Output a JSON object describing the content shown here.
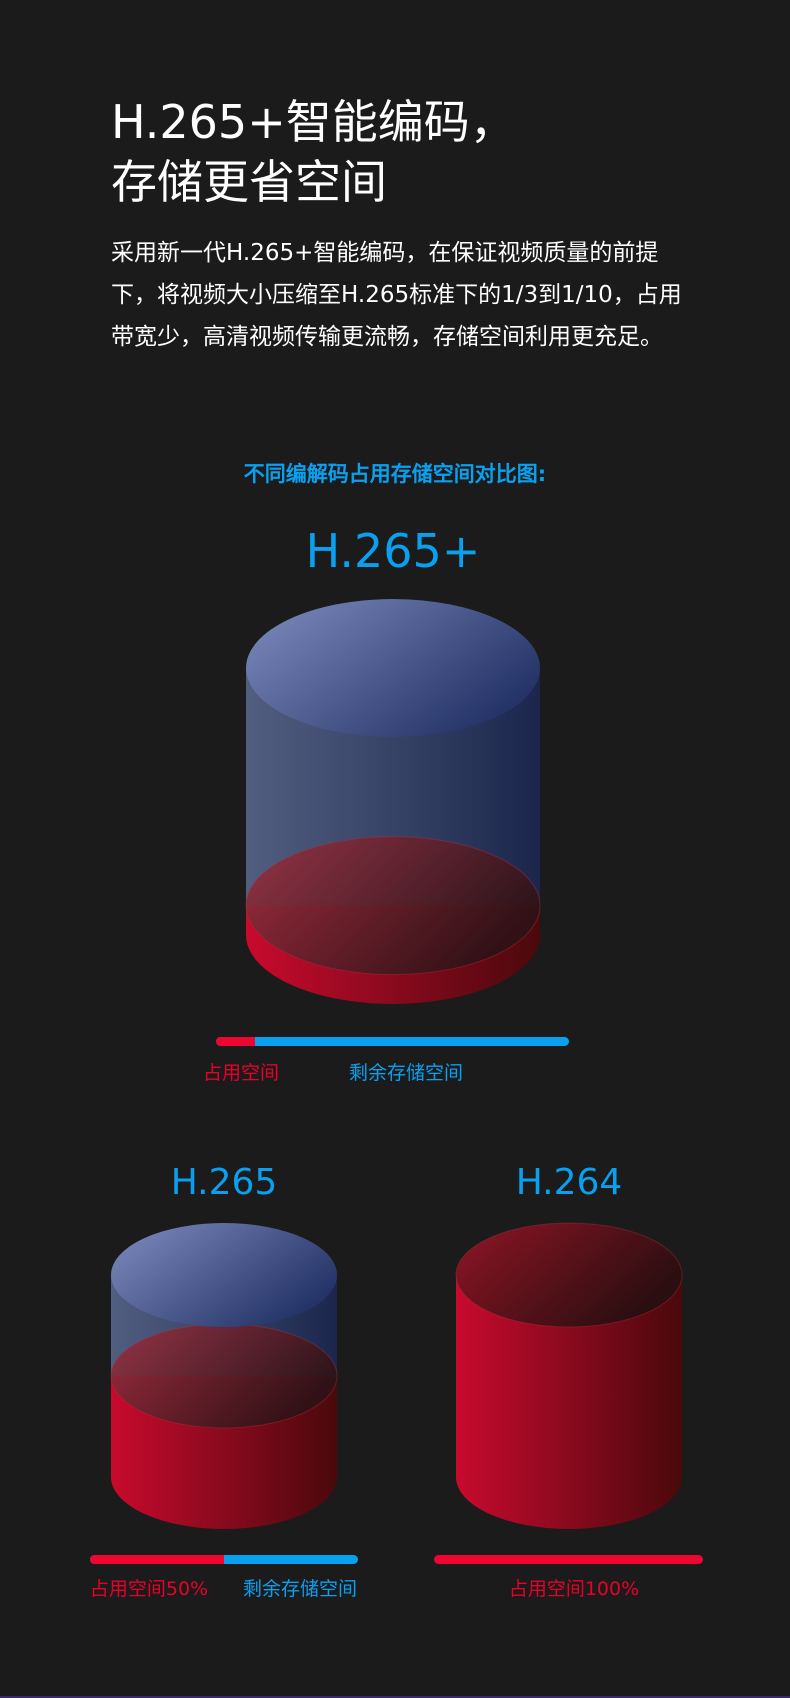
{
  "header": {
    "title_line1": "H.265+智能编码，",
    "title_line2": "存储更省空间",
    "paragraph": "采用新一代H.265+智能编码，在保证视频质量的前提下，将视频大小压缩至H.265标准下的1/3到1/10，占用带宽少，高清视频传输更流畅，存储空间利用更充足。"
  },
  "comparison": {
    "subtitle": "不同编解码占用存储空间对比图:",
    "colors": {
      "occupied": "#e8002a",
      "remaining": "#0aa0f0",
      "background": "#1b1b1b"
    },
    "items": [
      {
        "codec": "H.265+",
        "occupied_fraction": 0.11,
        "occupied_label": "占用空间",
        "remaining_label": "剩余存储空间"
      },
      {
        "codec": "H.265",
        "occupied_fraction": 0.5,
        "occupied_label": "占用空间50%",
        "remaining_label": "剩余存储空间"
      },
      {
        "codec": "H.264",
        "occupied_fraction": 1.0,
        "occupied_label": "占用空间100%"
      }
    ]
  }
}
